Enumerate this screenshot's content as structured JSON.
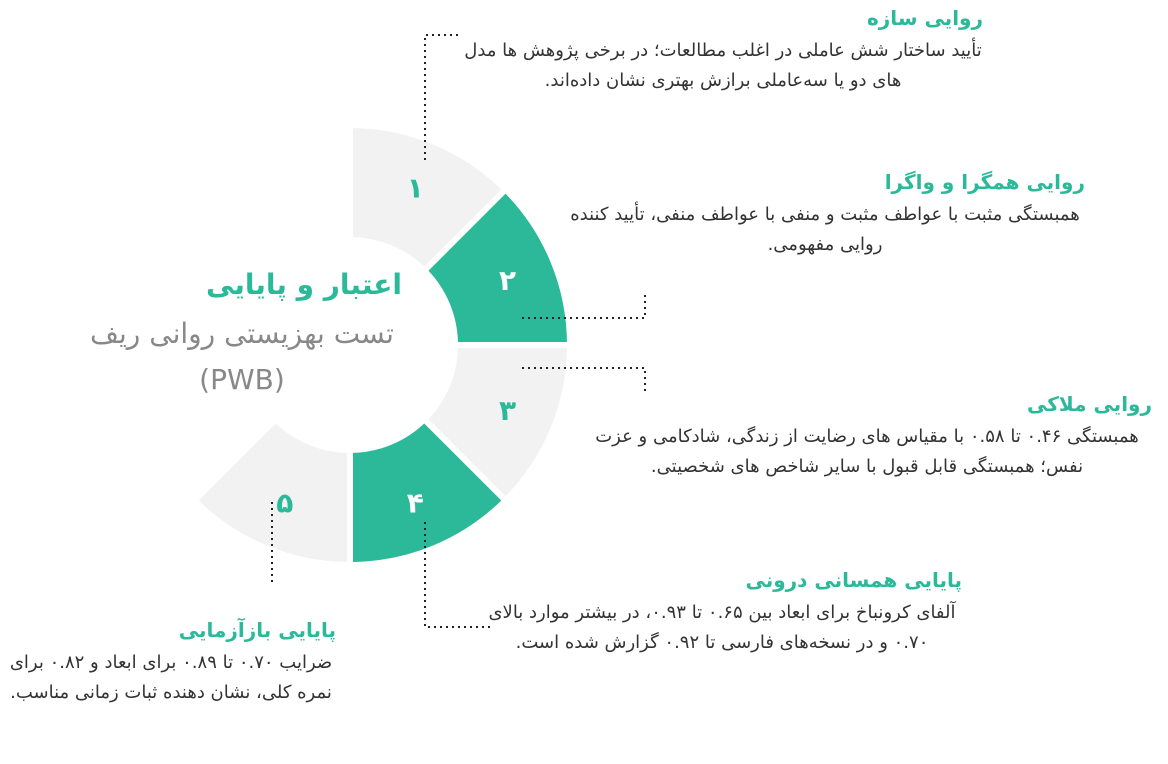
{
  "title": {
    "main": "اعتبار و پایایی",
    "subtitle": "تست بهزیستی روانی ریف (PWB)"
  },
  "colors": {
    "accent": "#2bb99a",
    "segment_gray": "#f2f2f2",
    "text": "#333333",
    "subtitle": "#888888"
  },
  "segments": [
    {
      "number": "۱",
      "color": "gray"
    },
    {
      "number": "۲",
      "color": "green"
    },
    {
      "number": "۳",
      "color": "gray"
    },
    {
      "number": "۴",
      "color": "green"
    },
    {
      "number": "۵",
      "color": "gray"
    }
  ],
  "items": [
    {
      "heading": "روایی سازه",
      "text": "تأیید ساختار شش عاملی در اغلب مطالعات؛ در برخی پژوهش ها مدل های دو یا سه‌عاملی برازش بهتری نشان داده‌اند."
    },
    {
      "heading": "روایی همگرا و واگرا",
      "text": "همبستگی مثبت با عواطف مثبت و منفی با عواطف منفی، تأیید کننده روایی مفهومی."
    },
    {
      "heading": "روایی ملاکی",
      "text": "همبستگی ۰.۴۶ تا ۰.۵۸ با مقیاس های رضایت از زندگی، شادکامی و عزت نفس؛ همبستگی قابل قبول با سایر شاخص های شخصیتی."
    },
    {
      "heading": "پایایی همسانی درونی",
      "text": "آلفای کرونباخ برای ابعاد بین ۰.۶۵ تا ۰.۹۳، در بیشتر موارد بالای ۰.۷۰ و در نسخه‌های فارسی تا ۰.۹۲ گزارش شده است."
    },
    {
      "heading": "پایایی بازآزمایی",
      "text": "ضرایب ۰.۷۰ تا ۰.۸۹ برای ابعاد و ۰.۸۲ برای نمره کلی، نشان دهنده ثبات زمانی مناسب."
    }
  ]
}
